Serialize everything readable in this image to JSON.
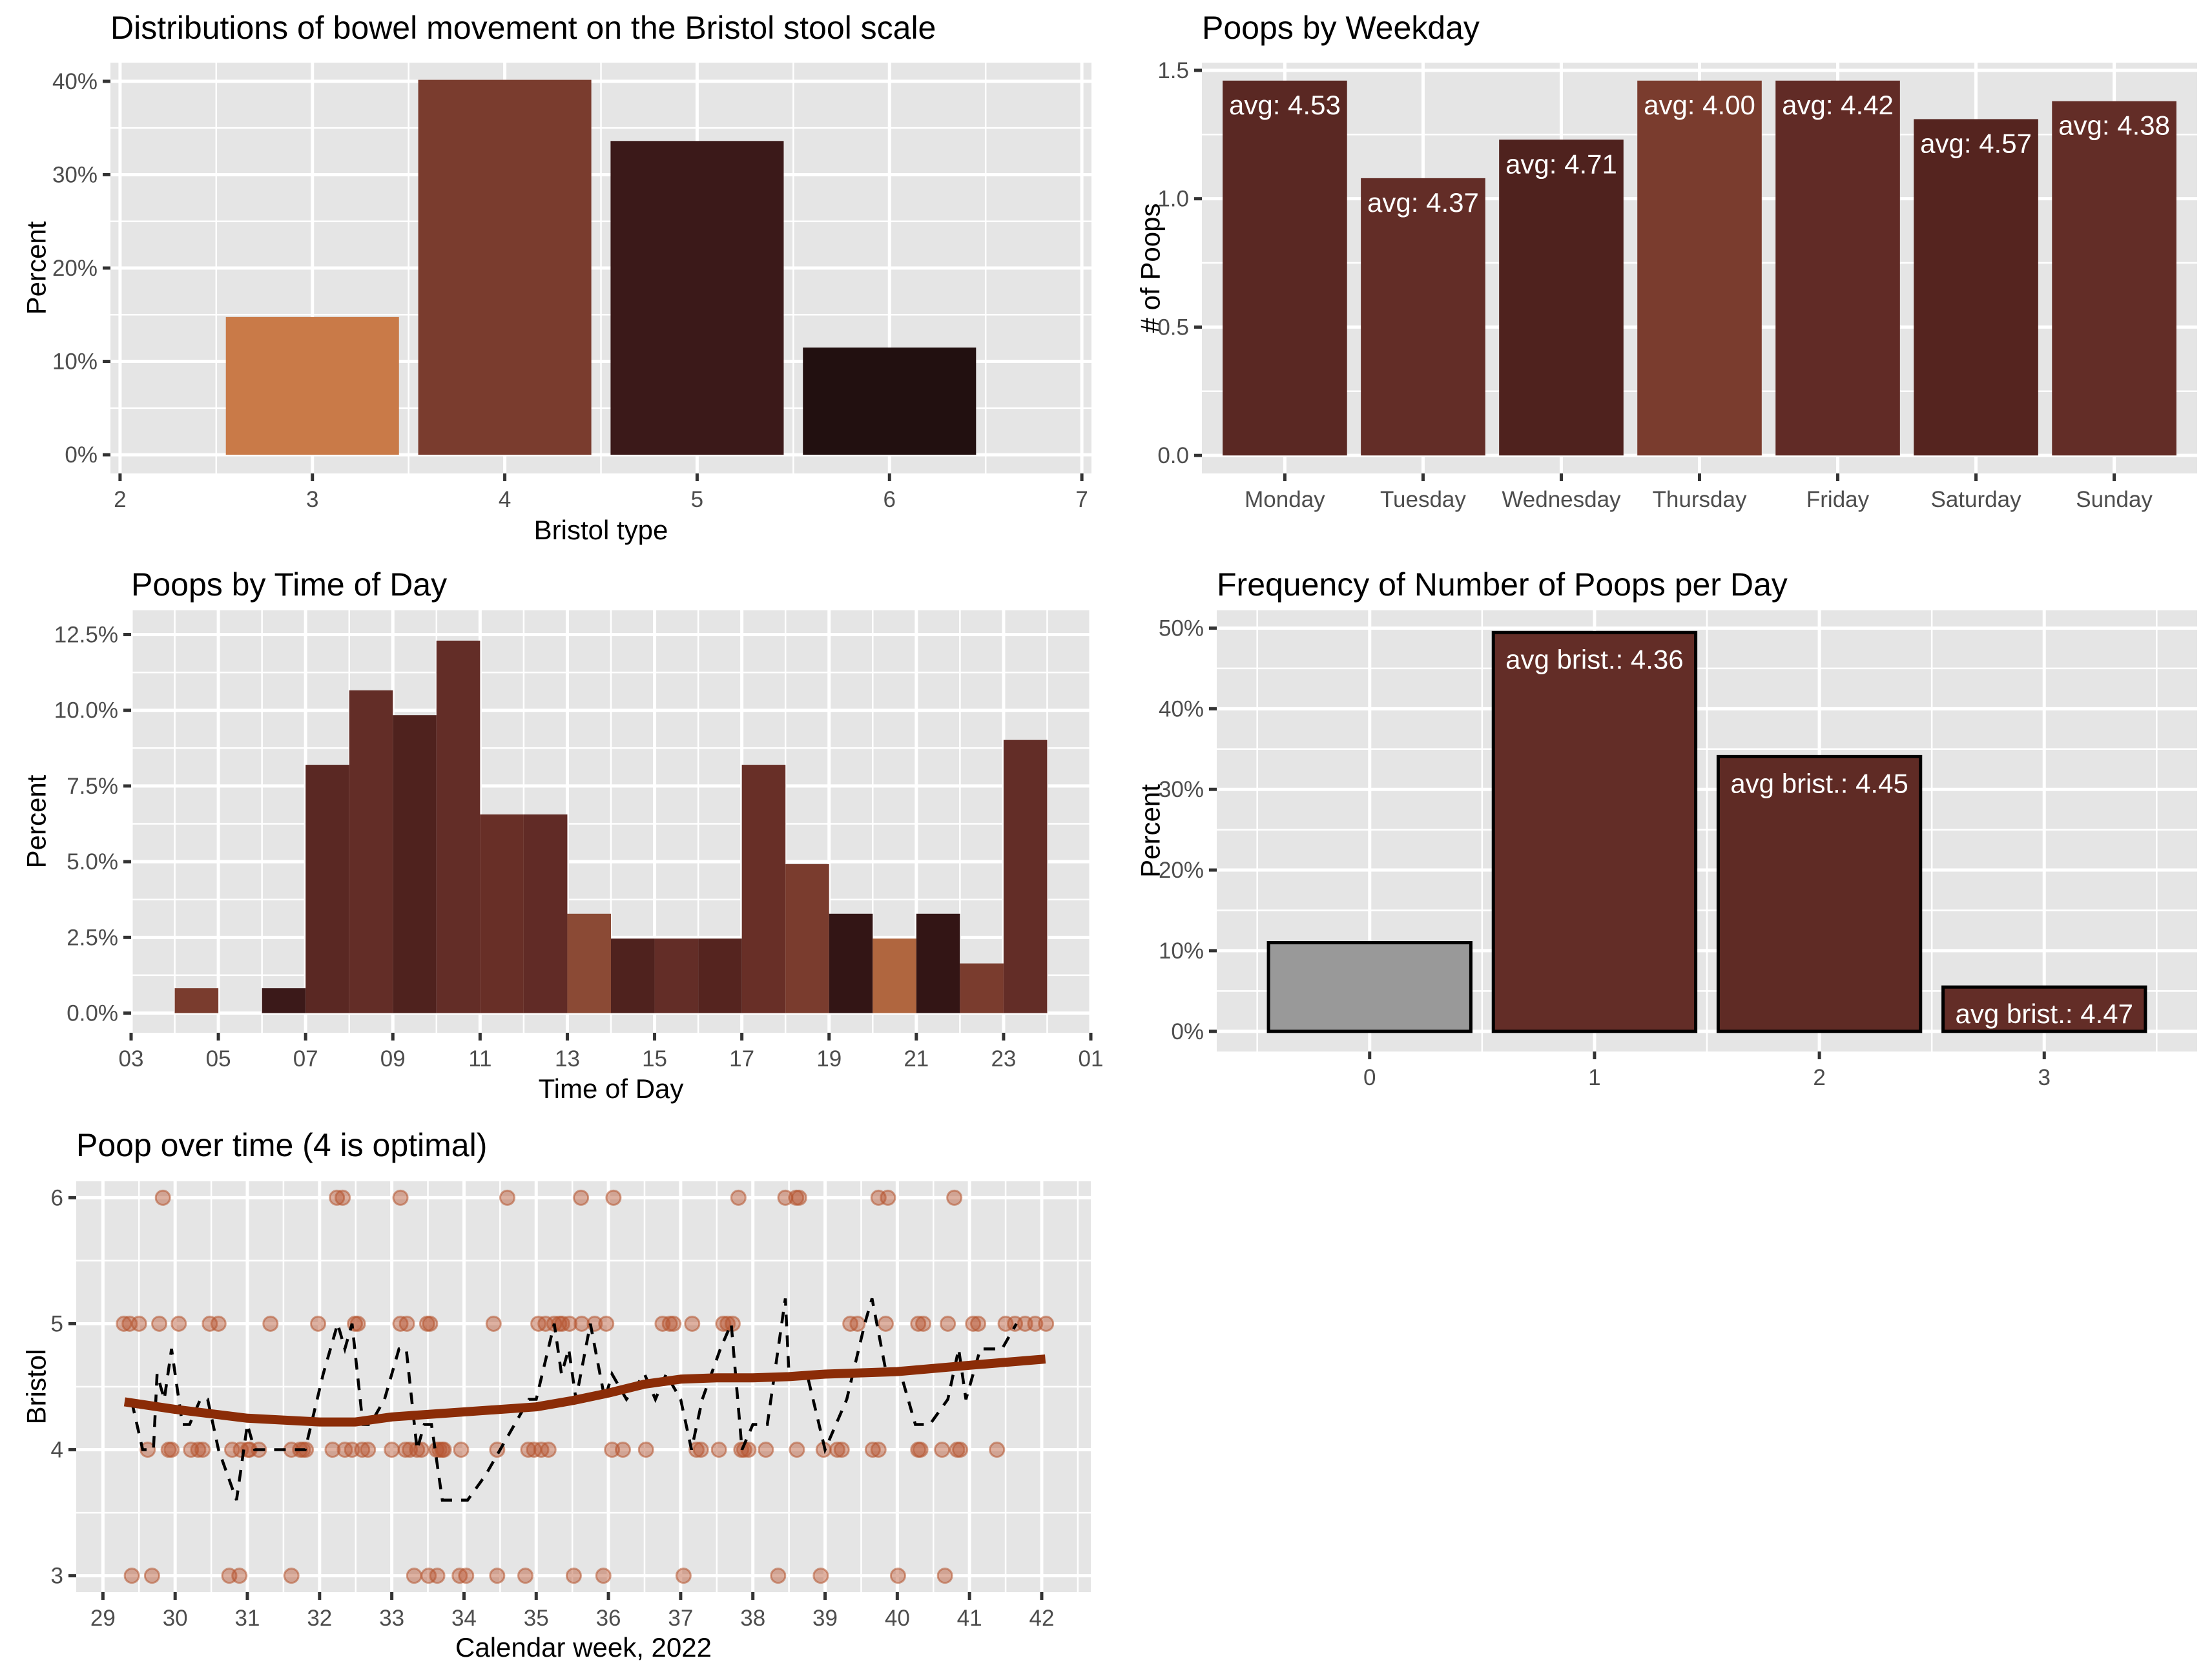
{
  "chart_data": [
    {
      "id": "bristol",
      "type": "bar",
      "title": "Distributions of bowel movement on the Bristol stool scale",
      "xlabel": "Bristol type",
      "ylabel": "Percent",
      "x": [
        3,
        4,
        5,
        6
      ],
      "values": [
        14.75,
        40.16,
        33.61,
        11.48
      ],
      "colors": [
        "#c97a48",
        "#7a3c2e",
        "#3b1919",
        "#221010"
      ],
      "xlim": [
        1.95,
        7.05
      ],
      "ylim": [
        -2,
        42
      ],
      "xticks": [
        "2",
        "3",
        "4",
        "5",
        "6",
        "7"
      ],
      "yticks": [
        {
          "value": 0,
          "label": "0%"
        },
        {
          "value": 10,
          "label": "10%"
        },
        {
          "value": 20,
          "label": "20%"
        },
        {
          "value": 30,
          "label": "30%"
        },
        {
          "value": 40,
          "label": "40%"
        }
      ],
      "grid": true
    },
    {
      "id": "weekday",
      "type": "bar",
      "title": "Poops by Weekday",
      "xlabel": "",
      "ylabel": "# of Poops",
      "categories": [
        "Monday",
        "Tuesday",
        "Wednesday",
        "Thursday",
        "Friday",
        "Saturday",
        "Sunday"
      ],
      "values": [
        1.46,
        1.08,
        1.23,
        1.46,
        1.46,
        1.31,
        1.38
      ],
      "labels": [
        "avg: 4.53",
        "avg: 4.37",
        "avg: 4.71",
        "avg: 4.00",
        "avg: 4.42",
        "avg: 4.57",
        "avg: 4.38"
      ],
      "colors": [
        "#5a2823",
        "#632d27",
        "#4f221e",
        "#7a3c2e",
        "#612b26",
        "#55241f",
        "#632d27"
      ],
      "ylim": [
        -0.07,
        1.53
      ],
      "yticks": [
        {
          "value": 0,
          "label": "0.0"
        },
        {
          "value": 0.5,
          "label": "0.5"
        },
        {
          "value": 1.0,
          "label": "1.0"
        },
        {
          "value": 1.5,
          "label": "1.5"
        }
      ],
      "grid": true
    },
    {
      "id": "timeofday",
      "type": "bar",
      "title": "Poops by Time of Day",
      "xlabel": "Time of Day",
      "ylabel": "Percent",
      "bins": [
        {
          "hour": 4,
          "value": 0.82,
          "color": "#7a3c2e"
        },
        {
          "hour": 6,
          "value": 0.82,
          "color": "#3b1919"
        },
        {
          "hour": 7,
          "value": 8.2,
          "color": "#5a2823"
        },
        {
          "hour": 8,
          "value": 10.66,
          "color": "#632d27"
        },
        {
          "hour": 9,
          "value": 9.84,
          "color": "#4f221e"
        },
        {
          "hour": 10,
          "value": 12.3,
          "color": "#632d27"
        },
        {
          "hour": 11,
          "value": 6.56,
          "color": "#682f27"
        },
        {
          "hour": 12,
          "value": 6.56,
          "color": "#612b26"
        },
        {
          "hour": 13,
          "value": 3.28,
          "color": "#8b4a35"
        },
        {
          "hour": 14,
          "value": 2.46,
          "color": "#4f221e"
        },
        {
          "hour": 15,
          "value": 2.46,
          "color": "#632d27"
        },
        {
          "hour": 16,
          "value": 2.46,
          "color": "#55241f"
        },
        {
          "hour": 17,
          "value": 8.2,
          "color": "#682f27"
        },
        {
          "hour": 18,
          "value": 4.92,
          "color": "#7a3c2e"
        },
        {
          "hour": 19,
          "value": 3.28,
          "color": "#331515"
        },
        {
          "hour": 20,
          "value": 2.46,
          "color": "#b0663f"
        },
        {
          "hour": 21,
          "value": 3.28,
          "color": "#331515"
        },
        {
          "hour": 22,
          "value": 1.64,
          "color": "#7a3c2e"
        },
        {
          "hour": 23,
          "value": 9.02,
          "color": "#632d27"
        }
      ],
      "xlim": [
        3,
        25
      ],
      "xticks": [
        "03",
        "05",
        "07",
        "09",
        "11",
        "13",
        "15",
        "17",
        "19",
        "21",
        "23",
        "01"
      ],
      "ylim": [
        -0.65,
        13.3
      ],
      "yticks": [
        {
          "value": 0,
          "label": "0.0%"
        },
        {
          "value": 2.5,
          "label": "2.5%"
        },
        {
          "value": 5,
          "label": "5.0%"
        },
        {
          "value": 7.5,
          "label": "7.5%"
        },
        {
          "value": 10,
          "label": "10.0%"
        },
        {
          "value": 12.5,
          "label": "12.5%"
        }
      ],
      "grid": true
    },
    {
      "id": "perday",
      "type": "bar",
      "title": "Frequency of Number of Poops per Day",
      "xlabel": "",
      "ylabel": "Percent",
      "x": [
        0,
        1,
        2,
        3
      ],
      "values": [
        10.99,
        49.45,
        34.07,
        5.49
      ],
      "labels": [
        "",
        "avg brist.: 4.36",
        "avg brist.: 4.45",
        "avg brist.: 4.47"
      ],
      "colors": [
        "#999999",
        "#632d27",
        "#5f2b25",
        "#632d27"
      ],
      "xlim": [
        -0.68,
        3.68
      ],
      "ylim": [
        -2.5,
        52.2
      ],
      "yticks": [
        {
          "value": 0,
          "label": "0%"
        },
        {
          "value": 10,
          "label": "10%"
        },
        {
          "value": 20,
          "label": "20%"
        },
        {
          "value": 30,
          "label": "30%"
        },
        {
          "value": 40,
          "label": "40%"
        },
        {
          "value": 50,
          "label": "50%"
        }
      ],
      "grid": true
    },
    {
      "id": "overtime",
      "type": "scatter",
      "title": "Poop over time (4 is optimal)",
      "xlabel": "Calendar week, 2022",
      "ylabel": "Bristol",
      "xlim": [
        28.63,
        42.68
      ],
      "ylim": [
        2.87,
        6.13
      ],
      "xticks": [
        29,
        30,
        31,
        32,
        33,
        34,
        35,
        36,
        37,
        38,
        39,
        40,
        41,
        42
      ],
      "yticks": [
        3,
        4,
        5,
        6
      ],
      "point_color": "#b5532e",
      "smooth_color": "#8b2c07",
      "points": {
        "6": [
          29.83,
          32.24,
          32.32,
          33.12,
          34.6,
          35.62,
          36.07,
          37.8,
          38.45,
          38.6,
          38.64,
          39.74,
          39.87,
          40.79
        ],
        "5": [
          29.29,
          29.37,
          29.5,
          29.78,
          30.05,
          30.48,
          30.6,
          31.32,
          31.98,
          32.49,
          32.53,
          33.12,
          33.21,
          33.49,
          33.53,
          34.41,
          35.03,
          35.13,
          35.25,
          35.32,
          35.36,
          35.46,
          35.63,
          35.81,
          35.97,
          36.75,
          36.85,
          36.9,
          37.16,
          37.59,
          37.65,
          37.72,
          39.35,
          39.45,
          39.84,
          40.29,
          40.36,
          40.7,
          41.05,
          41.12,
          41.5,
          41.63,
          41.77,
          41.91,
          42.06
        ],
        "4": [
          29.62,
          29.91,
          29.95,
          30.22,
          30.32,
          30.38,
          30.79,
          30.91,
          31.01,
          31.03,
          31.16,
          31.61,
          31.73,
          31.77,
          31.81,
          32.18,
          32.35,
          32.45,
          32.59,
          32.67,
          33.0,
          33.19,
          33.25,
          33.35,
          33.41,
          33.62,
          33.66,
          33.7,
          33.72,
          33.96,
          34.46,
          34.89,
          34.97,
          35.07,
          35.17,
          36.05,
          36.2,
          36.52,
          37.22,
          37.28,
          37.53,
          37.84,
          37.88,
          37.94,
          38.18,
          38.61,
          38.98,
          39.17,
          39.23,
          39.66,
          39.74,
          40.29,
          40.32,
          40.62,
          40.83,
          40.87,
          41.38
        ],
        "3": [
          29.4,
          29.68,
          30.75,
          30.89,
          31.61,
          33.31,
          33.51,
          33.63,
          33.94,
          34.03,
          34.46,
          34.85,
          35.52,
          35.93,
          37.04,
          38.35,
          38.94,
          40.01,
          40.66
        ]
      },
      "smooth": [
        [
          29.3,
          4.38
        ],
        [
          30,
          4.32
        ],
        [
          31,
          4.25
        ],
        [
          32,
          4.22
        ],
        [
          32.5,
          4.22
        ],
        [
          33,
          4.26
        ],
        [
          34,
          4.3
        ],
        [
          35,
          4.34
        ],
        [
          35.5,
          4.39
        ],
        [
          36,
          4.45
        ],
        [
          36.5,
          4.52
        ],
        [
          37,
          4.56
        ],
        [
          37.5,
          4.57
        ],
        [
          38,
          4.57
        ],
        [
          38.5,
          4.58
        ],
        [
          39,
          4.6
        ],
        [
          40,
          4.62
        ],
        [
          41,
          4.67
        ],
        [
          42.05,
          4.72
        ]
      ],
      "rolling": [
        [
          29.4,
          4.38
        ],
        [
          29.55,
          4.0
        ],
        [
          29.7,
          4.0
        ],
        [
          29.75,
          4.6
        ],
        [
          29.85,
          4.4
        ],
        [
          29.95,
          4.8
        ],
        [
          30.1,
          4.2
        ],
        [
          30.2,
          4.2
        ],
        [
          30.35,
          4.4
        ],
        [
          30.45,
          4.4
        ],
        [
          30.6,
          4.0
        ],
        [
          30.85,
          3.6
        ],
        [
          31.0,
          4.2
        ],
        [
          31.1,
          4.0
        ],
        [
          31.5,
          4.0
        ],
        [
          31.8,
          4.0
        ],
        [
          32.05,
          4.6
        ],
        [
          32.25,
          5.0
        ],
        [
          32.35,
          4.8
        ],
        [
          32.45,
          5.0
        ],
        [
          32.6,
          4.2
        ],
        [
          32.7,
          4.2
        ],
        [
          32.9,
          4.4
        ],
        [
          33.1,
          4.8
        ],
        [
          33.2,
          4.8
        ],
        [
          33.35,
          4.0
        ],
        [
          33.45,
          4.2
        ],
        [
          33.55,
          4.2
        ],
        [
          33.6,
          4.0
        ],
        [
          33.7,
          3.6
        ],
        [
          33.95,
          3.6
        ],
        [
          34.05,
          3.6
        ],
        [
          34.3,
          3.8
        ],
        [
          34.5,
          4.0
        ],
        [
          34.9,
          4.4
        ],
        [
          35.0,
          4.4
        ],
        [
          35.25,
          5.0
        ],
        [
          35.35,
          4.6
        ],
        [
          35.45,
          4.8
        ],
        [
          35.55,
          4.4
        ],
        [
          35.75,
          5.0
        ],
        [
          35.95,
          4.4
        ],
        [
          36.05,
          4.6
        ],
        [
          36.25,
          4.4
        ],
        [
          36.5,
          4.6
        ],
        [
          36.65,
          4.4
        ],
        [
          36.8,
          4.6
        ],
        [
          37.0,
          4.4
        ],
        [
          37.15,
          4.0
        ],
        [
          37.3,
          4.4
        ],
        [
          37.55,
          4.8
        ],
        [
          37.7,
          5.0
        ],
        [
          37.85,
          4.0
        ],
        [
          38.0,
          4.2
        ],
        [
          38.2,
          4.2
        ],
        [
          38.45,
          5.2
        ],
        [
          38.5,
          4.6
        ],
        [
          38.75,
          4.6
        ],
        [
          39.0,
          4.0
        ],
        [
          39.3,
          4.4
        ],
        [
          39.55,
          5.0
        ],
        [
          39.65,
          5.2
        ],
        [
          39.85,
          4.6
        ],
        [
          40.05,
          4.6
        ],
        [
          40.25,
          4.2
        ],
        [
          40.45,
          4.2
        ],
        [
          40.7,
          4.4
        ],
        [
          40.85,
          4.8
        ],
        [
          40.95,
          4.4
        ],
        [
          41.15,
          4.8
        ],
        [
          41.45,
          4.8
        ],
        [
          41.65,
          5.0
        ]
      ],
      "grid": true
    }
  ]
}
